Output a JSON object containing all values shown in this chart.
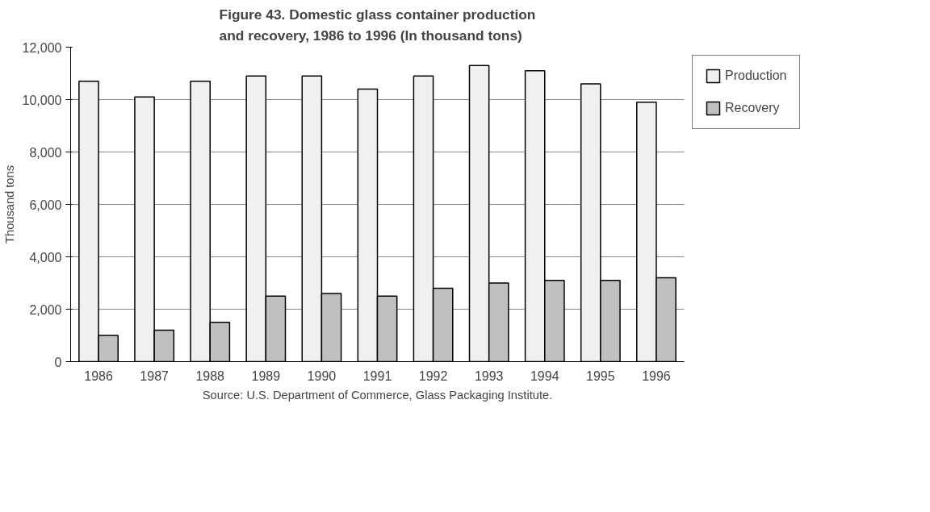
{
  "chart_data": {
    "type": "bar",
    "title": "Figure 43. Domestic glass container production\nand recovery, 1986 to 1996 (In thousand tons)",
    "ylabel": "Thousand tons",
    "categories": [
      "1986",
      "1987",
      "1988",
      "1989",
      "1990",
      "1991",
      "1992",
      "1993",
      "1994",
      "1995",
      "1996"
    ],
    "series": [
      {
        "name": "Production",
        "color": "#f0f0f0",
        "values": [
          10700,
          10100,
          10700,
          10900,
          10900,
          10400,
          10900,
          11300,
          11100,
          10600,
          9900
        ]
      },
      {
        "name": "Recovery",
        "color": "#c0c0c0",
        "values": [
          1000,
          1200,
          1500,
          2500,
          2600,
          2500,
          2800,
          3000,
          3100,
          3100,
          3200
        ]
      }
    ],
    "ylim": [
      0,
      12000
    ],
    "yticks": [
      {
        "value": 0,
        "label": "0"
      },
      {
        "value": 2000,
        "label": "2,000"
      },
      {
        "value": 4000,
        "label": "4,000"
      },
      {
        "value": 6000,
        "label": "6,000"
      },
      {
        "value": 8000,
        "label": "8,000"
      },
      {
        "value": 10000,
        "label": "10,000"
      },
      {
        "value": 12000,
        "label": "12,000"
      }
    ],
    "grid": "y",
    "legend": "right",
    "annotations": [
      "Source: U.S. Department of Commerce, Glass Packaging Institute."
    ]
  }
}
